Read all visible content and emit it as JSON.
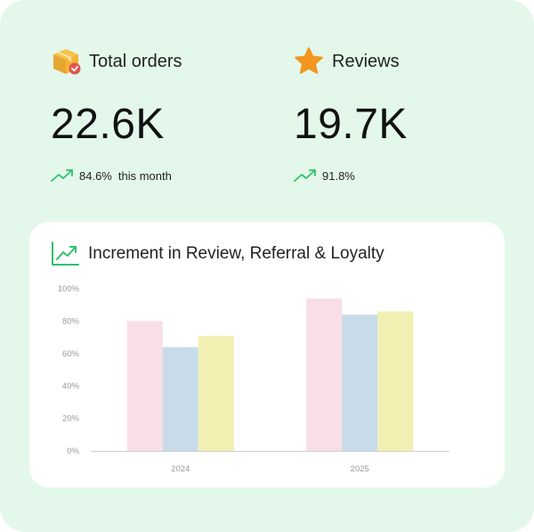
{
  "stats": [
    {
      "label": "Total orders",
      "value": "22.6K",
      "trend": "84.6%",
      "trend_note": "this month",
      "icon": "package-icon"
    },
    {
      "label": "Reviews",
      "value": "19.7K",
      "trend": "91.8%",
      "trend_note": "",
      "icon": "star-icon"
    }
  ],
  "panel": {
    "title": "Increment in Review, Referral & Loyalty",
    "icon": "trending-chart-icon"
  },
  "chart_data": {
    "type": "bar",
    "categories": [
      "2024",
      "2025"
    ],
    "series": [
      {
        "values": [
          80,
          94
        ],
        "color": "#f8dee6"
      },
      {
        "values": [
          64,
          84
        ],
        "color": "#c7dce8"
      },
      {
        "values": [
          71,
          86
        ],
        "color": "#f1f0b2"
      }
    ],
    "ylim": [
      0,
      100
    ],
    "yticks": [
      "0%",
      "20%",
      "40%",
      "60%",
      "80%",
      "100%"
    ],
    "ytick_values": [
      0,
      20,
      40,
      60,
      80,
      100
    ],
    "grid": false,
    "legend": "none"
  },
  "colors": {
    "background": "#e3f8ea",
    "panel": "#ffffff",
    "trend_green": "#2ec26a",
    "star_orange": "#f2961e"
  }
}
